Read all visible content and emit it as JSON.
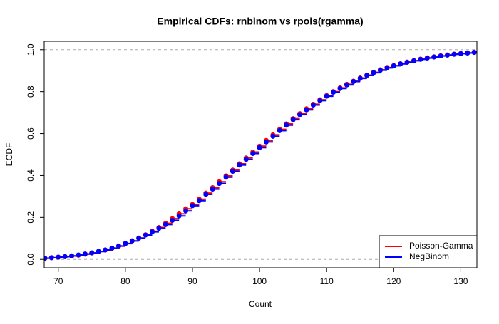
{
  "chart_data": {
    "type": "ecdf",
    "title": "Empirical CDFs: rnbinom vs rpois(rgamma)",
    "x_label": "Count",
    "y_label": "ECDF",
    "x": [
      68,
      69,
      70,
      71,
      72,
      73,
      74,
      75,
      76,
      77,
      78,
      79,
      80,
      81,
      82,
      83,
      84,
      85,
      86,
      87,
      88,
      89,
      90,
      91,
      92,
      93,
      94,
      95,
      96,
      97,
      98,
      99,
      100,
      101,
      102,
      103,
      104,
      105,
      106,
      107,
      108,
      109,
      110,
      111,
      112,
      113,
      114,
      115,
      116,
      117,
      118,
      119,
      120,
      121,
      122,
      123,
      124,
      125,
      126,
      127,
      128,
      129,
      130,
      131,
      132
    ],
    "series": [
      {
        "name": "Poisson-Gamma",
        "color": "#ff0000",
        "values": [
          0.005,
          0.008,
          0.01,
          0.013,
          0.016,
          0.02,
          0.025,
          0.031,
          0.037,
          0.045,
          0.053,
          0.063,
          0.075,
          0.088,
          0.102,
          0.117,
          0.134,
          0.152,
          0.172,
          0.194,
          0.217,
          0.241,
          0.262,
          0.287,
          0.316,
          0.342,
          0.37,
          0.398,
          0.426,
          0.456,
          0.484,
          0.512,
          0.54,
          0.567,
          0.594,
          0.62,
          0.646,
          0.671,
          0.695,
          0.718,
          0.74,
          0.761,
          0.781,
          0.8,
          0.818,
          0.835,
          0.85,
          0.865,
          0.879,
          0.892,
          0.904,
          0.915,
          0.924,
          0.933,
          0.941,
          0.948,
          0.955,
          0.961,
          0.966,
          0.971,
          0.975,
          0.979,
          0.982,
          0.985,
          0.988
        ]
      },
      {
        "name": "NegBinom",
        "color": "#0000ff",
        "values": [
          0.006,
          0.008,
          0.011,
          0.013,
          0.017,
          0.021,
          0.026,
          0.031,
          0.038,
          0.045,
          0.054,
          0.064,
          0.076,
          0.088,
          0.101,
          0.116,
          0.131,
          0.148,
          0.166,
          0.186,
          0.207,
          0.231,
          0.256,
          0.28,
          0.31,
          0.335,
          0.362,
          0.392,
          0.42,
          0.45,
          0.477,
          0.505,
          0.533,
          0.56,
          0.587,
          0.614,
          0.64,
          0.666,
          0.69,
          0.713,
          0.736,
          0.757,
          0.778,
          0.797,
          0.815,
          0.832,
          0.848,
          0.863,
          0.877,
          0.89,
          0.902,
          0.913,
          0.923,
          0.932,
          0.94,
          0.947,
          0.954,
          0.96,
          0.965,
          0.97,
          0.974,
          0.978,
          0.981,
          0.984,
          0.987
        ]
      }
    ],
    "xlim": [
      67.9,
      132.4
    ],
    "ylim": [
      -0.04,
      1.04
    ],
    "xticks": [
      70,
      80,
      90,
      100,
      110,
      120,
      130
    ],
    "yticks": [
      {
        "value": 0,
        "label": "0.0"
      },
      0.2,
      0.4,
      0.6,
      0.8,
      {
        "value": 1,
        "label": "1.0"
      }
    ],
    "hlines": [
      0,
      1
    ],
    "legend": "bottom-right"
  }
}
